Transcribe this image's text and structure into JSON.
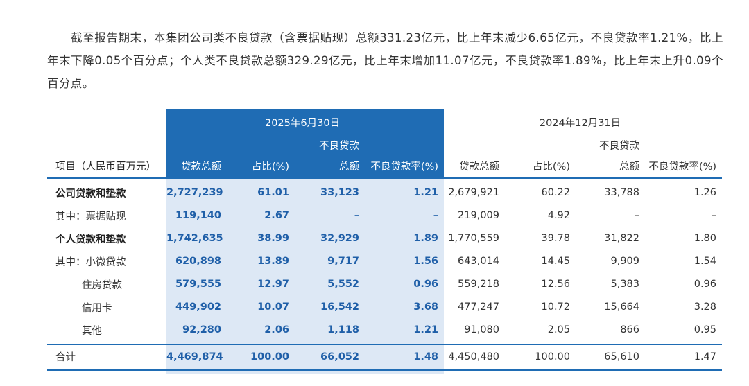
{
  "paragraph": "截至报告期末，本集团公司类不良贷款（含票据贴现）总额331.23亿元，比上年末减少6.65亿元，不良贷款率1.21%，比上年末下降0.05个百分点；个人类不良贷款总额329.29亿元，比上年末增加11.07亿元，不良贷款率1.89%，比上年末上升0.09个百分点。",
  "table": {
    "row_header": "项目（人民币百万元）",
    "period_current": "2025年6月30日",
    "period_prior": "2024年12月31日",
    "npl_top": "不良贷款",
    "col_loans": "贷款总额",
    "col_share": "占比(%)",
    "col_npl_amount": "总额",
    "col_npl_ratio": "不良贷款率(%)",
    "rows": [
      {
        "label": "公司贷款和垫款",
        "c": [
          "2,727,239",
          "61.01",
          "33,123",
          "1.21"
        ],
        "p": [
          "2,679,921",
          "60.22",
          "33,788",
          "1.26"
        ]
      },
      {
        "label": "其中：票据贴现",
        "c": [
          "119,140",
          "2.67",
          "–",
          "–"
        ],
        "p": [
          "219,009",
          "4.92",
          "–",
          "–"
        ]
      },
      {
        "label": "个人贷款和垫款",
        "c": [
          "1,742,635",
          "38.99",
          "32,929",
          "1.89"
        ],
        "p": [
          "1,770,559",
          "39.78",
          "31,822",
          "1.80"
        ]
      },
      {
        "label": "其中：小微贷款",
        "c": [
          "620,898",
          "13.89",
          "9,717",
          "1.56"
        ],
        "p": [
          "643,014",
          "14.45",
          "9,909",
          "1.54"
        ]
      },
      {
        "label": "住房贷款",
        "c": [
          "579,555",
          "12.97",
          "5,552",
          "0.96"
        ],
        "p": [
          "559,218",
          "12.56",
          "5,383",
          "0.96"
        ]
      },
      {
        "label": "信用卡",
        "c": [
          "449,902",
          "10.07",
          "16,542",
          "3.68"
        ],
        "p": [
          "477,247",
          "10.72",
          "15,664",
          "3.28"
        ]
      },
      {
        "label": "其他",
        "c": [
          "92,280",
          "2.06",
          "1,118",
          "1.21"
        ],
        "p": [
          "91,080",
          "2.05",
          "866",
          "0.95"
        ]
      }
    ],
    "total": {
      "label": "合计",
      "c": [
        "4,469,874",
        "100.00",
        "66,052",
        "1.48"
      ],
      "p": [
        "4,450,480",
        "100.00",
        "65,610",
        "1.47"
      ]
    }
  }
}
